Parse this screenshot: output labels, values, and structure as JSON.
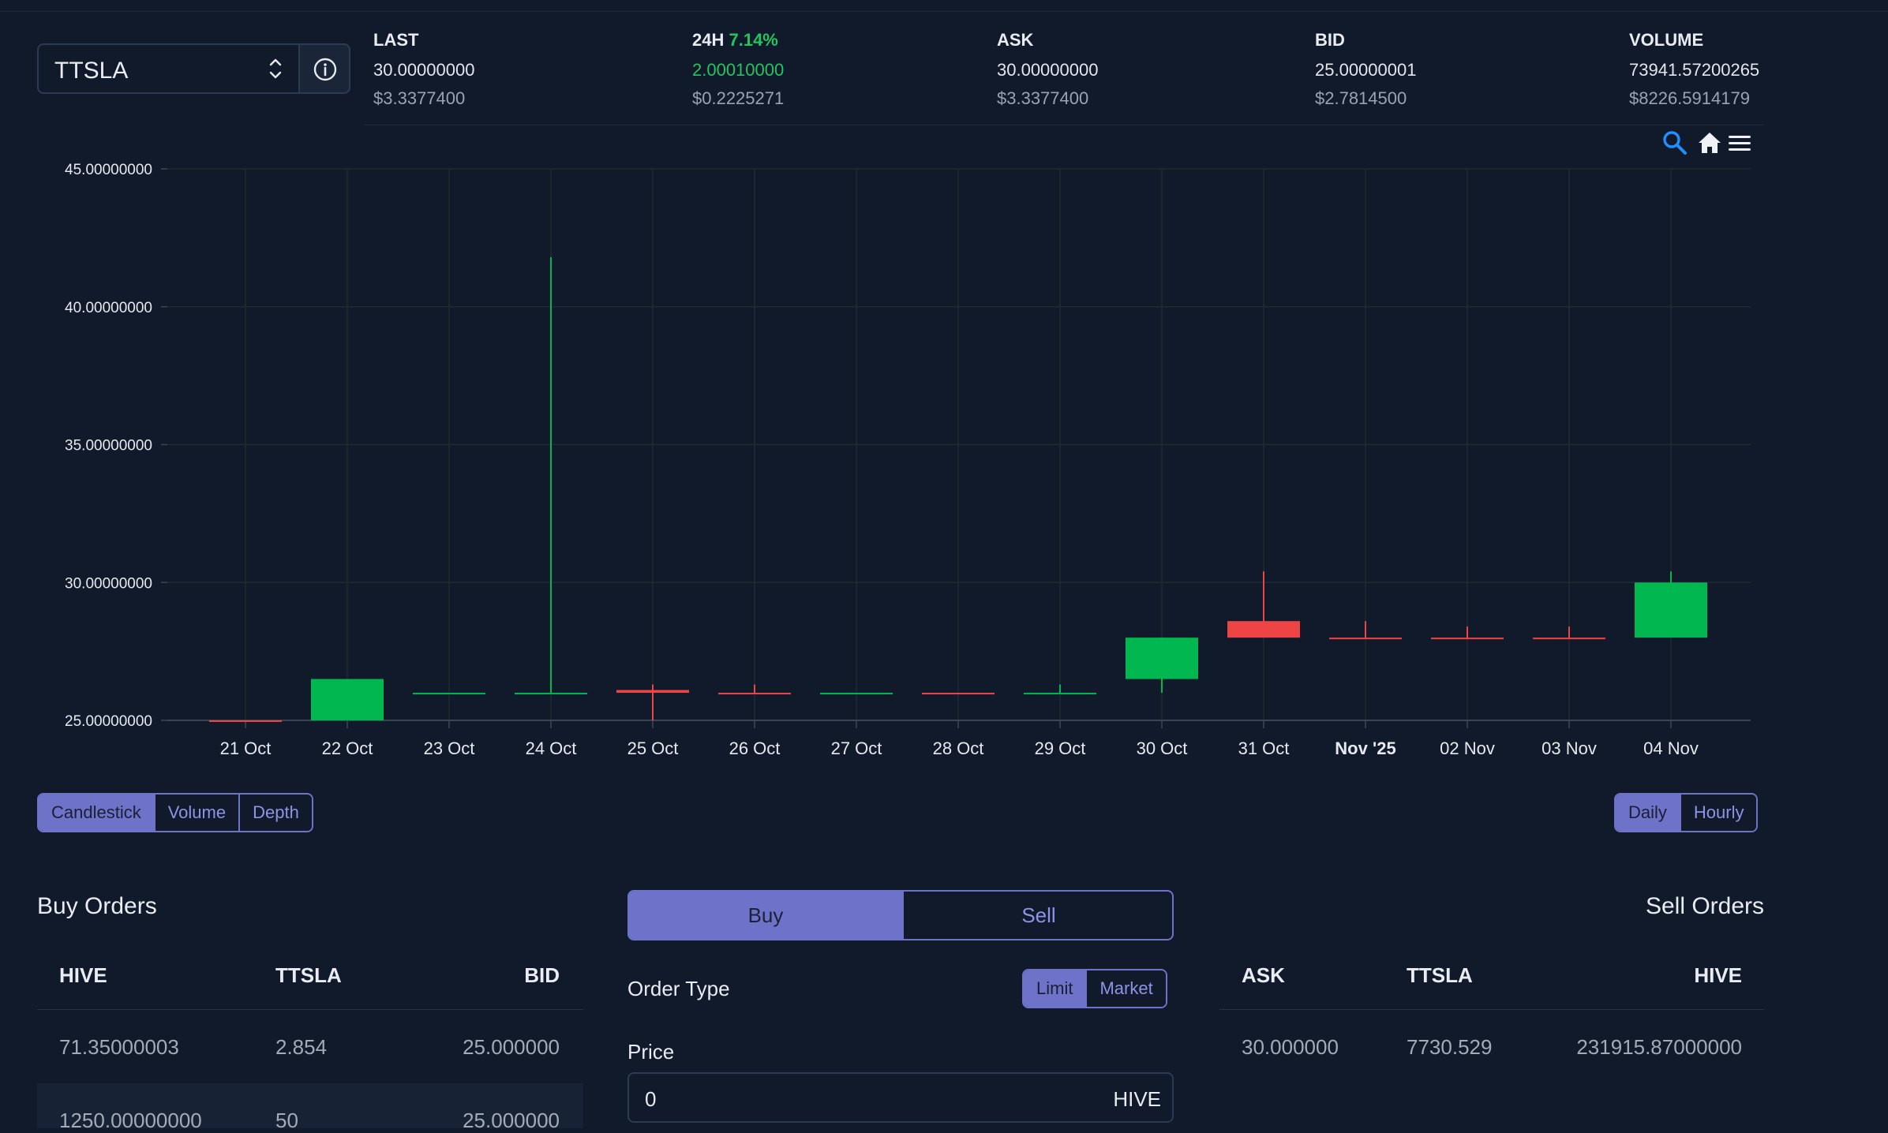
{
  "market": {
    "token": "TTSLA"
  },
  "stats": [
    {
      "label": "LAST",
      "pct": "",
      "value": "30.00000000",
      "usd": "$3.3377400"
    },
    {
      "label": "24H",
      "pct": "7.14%",
      "value": "2.00010000",
      "usd": "$0.2225271"
    },
    {
      "label": "ASK",
      "pct": "",
      "value": "30.00000000",
      "usd": "$3.3377400"
    },
    {
      "label": "BID",
      "pct": "",
      "value": "25.00000001",
      "usd": "$2.7814500"
    },
    {
      "label": "VOLUME",
      "pct": "",
      "value": "73941.57200265",
      "usd": "$8226.5914179"
    }
  ],
  "toolbar": {
    "icons": [
      "zoom-icon",
      "home-icon",
      "menu-icon"
    ]
  },
  "chart_data": {
    "type": "candlestick",
    "categories": [
      "21 Oct",
      "22 Oct",
      "23 Oct",
      "24 Oct",
      "25 Oct",
      "26 Oct",
      "27 Oct",
      "28 Oct",
      "29 Oct",
      "30 Oct",
      "31 Oct",
      "Nov '25",
      "02 Nov",
      "03 Nov",
      "04 Nov"
    ],
    "ohlc": [
      {
        "o": 25.0,
        "h": 25.0,
        "l": 25.0,
        "c": 25.0
      },
      {
        "o": 25.0,
        "h": 26.5,
        "l": 25.0,
        "c": 26.5
      },
      {
        "o": 26.0,
        "h": 26.0,
        "l": 26.0,
        "c": 26.0
      },
      {
        "o": 26.0,
        "h": 41.8,
        "l": 26.0,
        "c": 26.0
      },
      {
        "o": 26.1,
        "h": 26.3,
        "l": 25.0,
        "c": 26.0
      },
      {
        "o": 26.0,
        "h": 26.3,
        "l": 26.0,
        "c": 26.0
      },
      {
        "o": 26.0,
        "h": 26.0,
        "l": 26.0,
        "c": 26.0
      },
      {
        "o": 26.0,
        "h": 26.0,
        "l": 26.0,
        "c": 26.0
      },
      {
        "o": 26.0,
        "h": 26.3,
        "l": 26.0,
        "c": 26.0
      },
      {
        "o": 26.5,
        "h": 28.0,
        "l": 26.0,
        "c": 28.0
      },
      {
        "o": 28.6,
        "h": 30.4,
        "l": 28.0,
        "c": 28.0
      },
      {
        "o": 28.0,
        "h": 28.6,
        "l": 28.0,
        "c": 28.0
      },
      {
        "o": 28.0,
        "h": 28.4,
        "l": 28.0,
        "c": 28.0
      },
      {
        "o": 28.0,
        "h": 28.4,
        "l": 28.0,
        "c": 28.0
      },
      {
        "o": 28.0,
        "h": 30.4,
        "l": 28.0,
        "c": 30.0
      }
    ],
    "y_ticks": [
      "45.00000000",
      "40.00000000",
      "35.00000000",
      "30.00000000",
      "25.00000000"
    ],
    "ylim": [
      25,
      45
    ],
    "up_color": "#00b84f",
    "down_color": "#ef4444",
    "grid": true
  },
  "chart_types": [
    "Candlestick",
    "Volume",
    "Depth"
  ],
  "chart_type_active": "Candlestick",
  "intervals": [
    "Daily",
    "Hourly"
  ],
  "interval_active": "Daily",
  "buy_orders": {
    "title": "Buy Orders",
    "headers": [
      "HIVE",
      "TTSLA",
      "BID"
    ],
    "rows": [
      [
        "71.35000003",
        "2.854",
        "25.000000"
      ],
      [
        "1250.00000000",
        "50",
        "25.000000"
      ]
    ]
  },
  "sell_orders": {
    "title": "Sell Orders",
    "headers": [
      "ASK",
      "TTSLA",
      "HIVE"
    ],
    "rows": [
      [
        "30.000000",
        "7730.529",
        "231915.87000000"
      ]
    ]
  },
  "trade": {
    "buy_label": "Buy",
    "sell_label": "Sell",
    "order_type_label": "Order Type",
    "order_types": [
      "Limit",
      "Market"
    ],
    "order_type_active": "Limit",
    "price_label": "Price",
    "price_value": "0",
    "price_unit": "HIVE"
  }
}
